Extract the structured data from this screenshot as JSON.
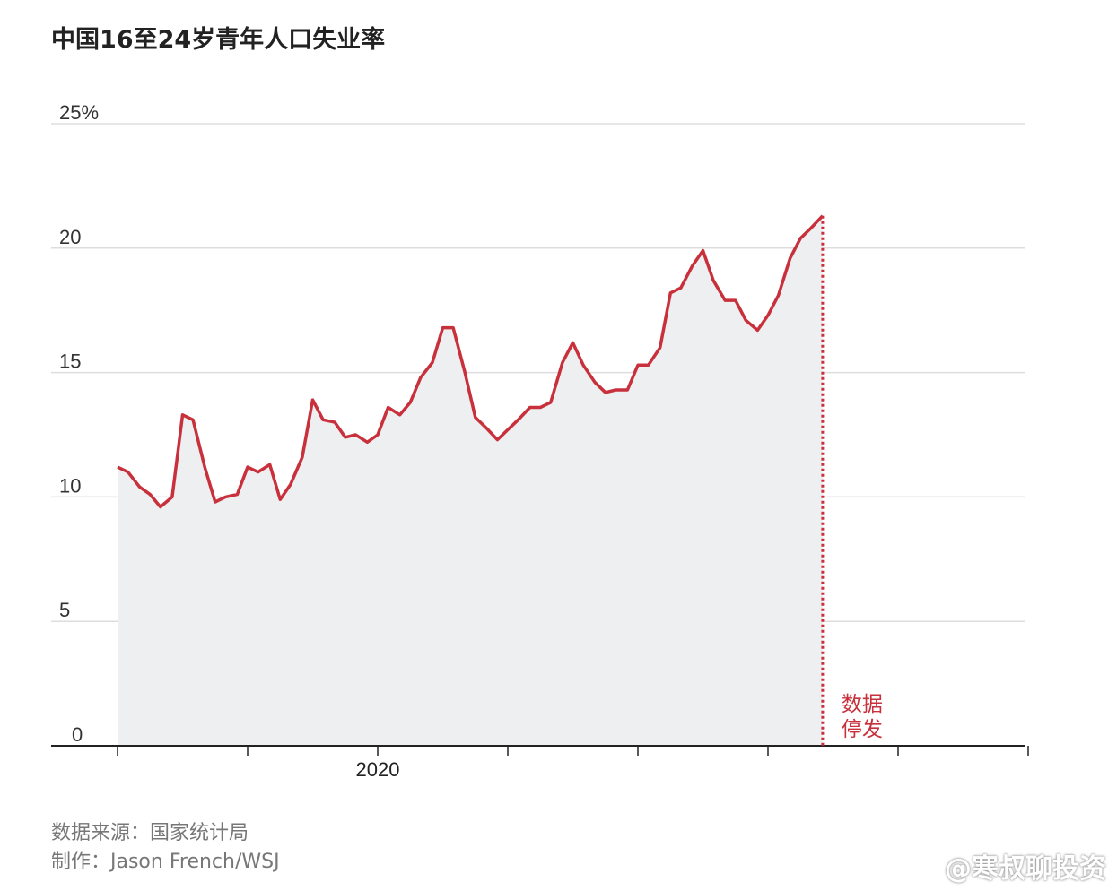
{
  "title": "中国16至24岁青年人口失业率",
  "source_line": "数据来源：国家统计局",
  "credit_line": "制作：Jason French/WSJ",
  "watermark": "@寒叔聊投资",
  "colors": {
    "line": "#c8313c",
    "area": "#eeeff1",
    "grid": "#dddddd",
    "axis": "#222222"
  },
  "chart_data": {
    "type": "area",
    "title": "中国16至24岁青年人口失业率",
    "y_tick_labels": [
      "25%",
      "20",
      "15",
      "10",
      "5",
      "0"
    ],
    "y_ticks": [
      25,
      20,
      15,
      10,
      5,
      0
    ],
    "ylim": [
      0,
      25
    ],
    "x_tick_labels": [
      "2020"
    ],
    "x_tick_label_date": 2020.0,
    "xlim": [
      2017.75,
      2025.25
    ],
    "x_major_ticks": [
      2018,
      2019,
      2020,
      2021,
      2022,
      2023,
      2024,
      2025
    ],
    "grid": true,
    "annotation": {
      "lines": [
        "数据",
        "停发"
      ],
      "x": 2023.42
    },
    "series": [
      {
        "values": [
          [
            2018.0,
            11.2
          ],
          [
            2018.08,
            11.0
          ],
          [
            2018.17,
            10.4
          ],
          [
            2018.25,
            10.1
          ],
          [
            2018.33,
            9.6
          ],
          [
            2018.42,
            10.0
          ],
          [
            2018.5,
            13.3
          ],
          [
            2018.58,
            13.1
          ],
          [
            2018.67,
            11.2
          ],
          [
            2018.75,
            9.8
          ],
          [
            2018.83,
            10.0
          ],
          [
            2018.92,
            10.1
          ],
          [
            2019.0,
            11.2
          ],
          [
            2019.08,
            11.0
          ],
          [
            2019.17,
            11.3
          ],
          [
            2019.25,
            9.9
          ],
          [
            2019.33,
            10.5
          ],
          [
            2019.42,
            11.6
          ],
          [
            2019.5,
            13.9
          ],
          [
            2019.58,
            13.1
          ],
          [
            2019.67,
            13.0
          ],
          [
            2019.75,
            12.4
          ],
          [
            2019.83,
            12.5
          ],
          [
            2019.92,
            12.2
          ],
          [
            2020.0,
            12.5
          ],
          [
            2020.08,
            13.6
          ],
          [
            2020.17,
            13.3
          ],
          [
            2020.25,
            13.8
          ],
          [
            2020.33,
            14.8
          ],
          [
            2020.42,
            15.4
          ],
          [
            2020.5,
            16.8
          ],
          [
            2020.58,
            16.8
          ],
          [
            2020.67,
            15.0
          ],
          [
            2020.75,
            13.2
          ],
          [
            2020.83,
            12.8
          ],
          [
            2020.92,
            12.3
          ],
          [
            2021.0,
            12.7
          ],
          [
            2021.08,
            13.1
          ],
          [
            2021.17,
            13.6
          ],
          [
            2021.25,
            13.6
          ],
          [
            2021.33,
            13.8
          ],
          [
            2021.42,
            15.4
          ],
          [
            2021.5,
            16.2
          ],
          [
            2021.58,
            15.3
          ],
          [
            2021.67,
            14.6
          ],
          [
            2021.75,
            14.2
          ],
          [
            2021.83,
            14.3
          ],
          [
            2021.92,
            14.3
          ],
          [
            2022.0,
            15.3
          ],
          [
            2022.08,
            15.3
          ],
          [
            2022.17,
            16.0
          ],
          [
            2022.25,
            18.2
          ],
          [
            2022.33,
            18.4
          ],
          [
            2022.42,
            19.3
          ],
          [
            2022.5,
            19.9
          ],
          [
            2022.58,
            18.7
          ],
          [
            2022.67,
            17.9
          ],
          [
            2022.75,
            17.9
          ],
          [
            2022.83,
            17.1
          ],
          [
            2022.92,
            16.7
          ],
          [
            2023.0,
            17.3
          ],
          [
            2023.08,
            18.1
          ],
          [
            2023.17,
            19.6
          ],
          [
            2023.25,
            20.4
          ],
          [
            2023.33,
            20.8
          ],
          [
            2023.42,
            21.3
          ]
        ]
      }
    ]
  }
}
